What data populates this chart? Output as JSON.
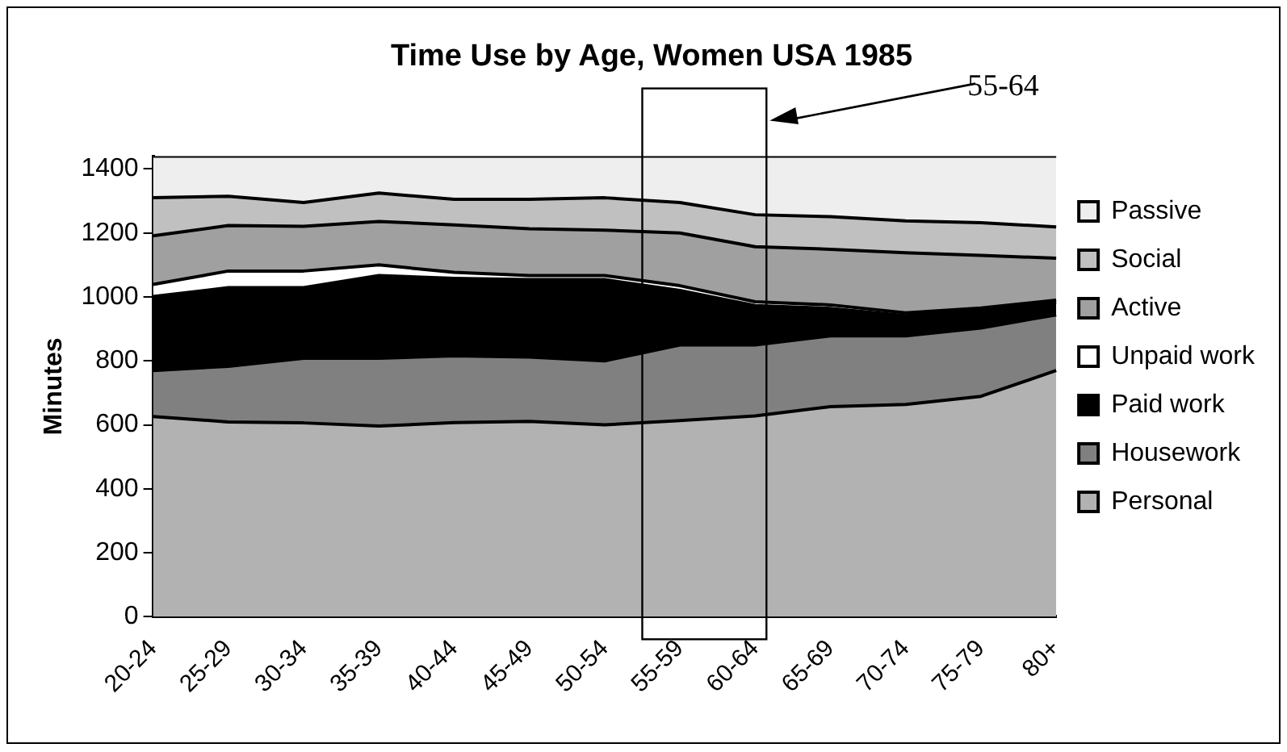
{
  "chart_data": {
    "type": "area",
    "title": "Time Use by Age, Women USA 1985",
    "ylabel": "Minutes",
    "stacked": true,
    "legend": "right",
    "grid": false,
    "marker": "none",
    "categories": [
      "20-24",
      "25-29",
      "30-34",
      "35-39",
      "40-44",
      "45-49",
      "50-54",
      "55-59",
      "60-64",
      "65-69",
      "70-74",
      "75-79",
      "80+"
    ],
    "ylim": [
      0,
      1440
    ],
    "yticks": [
      0,
      200,
      400,
      600,
      800,
      1000,
      1200,
      1400
    ],
    "annotations": [
      "55-64"
    ],
    "series": [
      {
        "name": "Personal",
        "color": "#b2b2b2",
        "values": [
          626,
          609,
          606,
          596,
          607,
          611,
          600,
          613,
          628,
          657,
          664,
          689,
          770
        ]
      },
      {
        "name": "Housework",
        "color": "#808080",
        "values": [
          144,
          174,
          202,
          212,
          209,
          201,
          200,
          237,
          222,
          221,
          214,
          214,
          174
        ]
      },
      {
        "name": "Paid work",
        "color": "#000000",
        "values": [
          231,
          246,
          221,
          259,
          242,
          242,
          254,
          170,
          123,
          86,
          63,
          57,
          38
        ]
      },
      {
        "name": "Unpaid work",
        "color": "#ffffff",
        "values": [
          38,
          52,
          52,
          33,
          19,
          13,
          13,
          15,
          12,
          11,
          9,
          5,
          8
        ]
      },
      {
        "name": "Active",
        "color": "#a0a0a0",
        "values": [
          152,
          142,
          140,
          136,
          148,
          146,
          142,
          165,
          172,
          174,
          188,
          165,
          131
        ]
      },
      {
        "name": "Social",
        "color": "#c0c0c0",
        "values": [
          119,
          92,
          74,
          89,
          80,
          92,
          101,
          95,
          100,
          102,
          100,
          102,
          98
        ]
      },
      {
        "name": "Passive",
        "color": "#eeeeee",
        "values": [
          130,
          125,
          145,
          115,
          135,
          135,
          130,
          145,
          183,
          189,
          202,
          208,
          221
        ]
      }
    ]
  }
}
